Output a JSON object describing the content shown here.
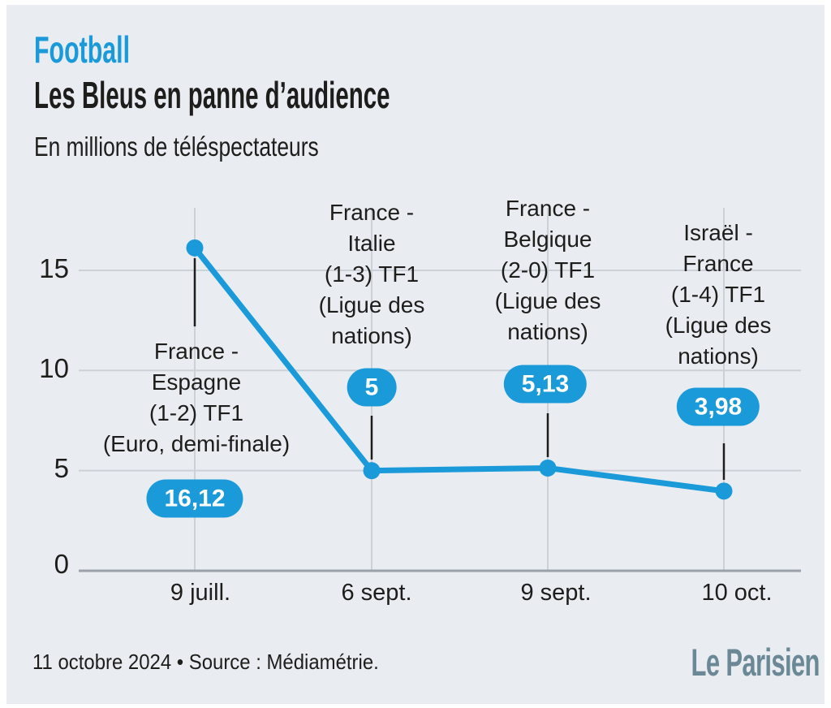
{
  "header": {
    "kicker": "Football",
    "title": "Les Bleus en panne d’audience",
    "subtitle": "En millions de téléspectateurs"
  },
  "colors": {
    "accent": "#1b9ad9",
    "background": "#e9edf2",
    "text": "#1d1d1b",
    "gridline": "#cbd1d7",
    "axis": "#9aa1a8",
    "logo": "#6b8896"
  },
  "chart_data": {
    "type": "line",
    "title": "Les Bleus en panne d’audience",
    "ylabel": "En millions de téléspectateurs",
    "categories": [
      "9 juill.",
      "6 sept.",
      "9 sept.",
      "10 oct."
    ],
    "values": [
      16.12,
      5,
      5.13,
      3.98
    ],
    "value_labels": [
      "16,12",
      "5",
      "5,13",
      "3,98"
    ],
    "annotations": [
      "France -\nEspagne\n(1-2) TF1\n(Euro, demi-finale)",
      "France -\nItalie\n(1-3) TF1\n(Ligue des\nnations)",
      "France -\nBelgique\n(2-0) TF1\n(Ligue des\nnations)",
      "Israël -\nFrance\n(1-4) TF1\n(Ligue des\nnations)"
    ],
    "ylim": [
      0,
      17
    ],
    "yticks": [
      0,
      5,
      10,
      15
    ],
    "grid": true,
    "line_color": "#1b9ad9"
  },
  "footer": {
    "source": "11 octobre 2024 • Source : Médiamétrie.",
    "logo": "Le Parisien"
  }
}
